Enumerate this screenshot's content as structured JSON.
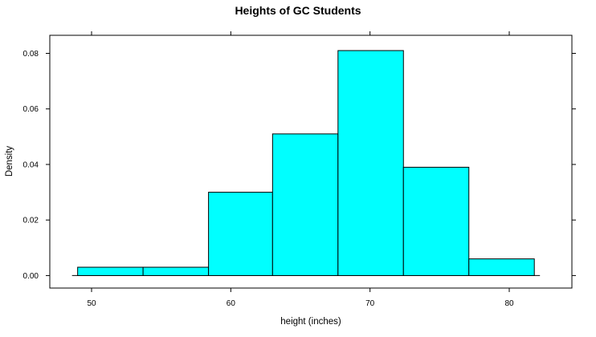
{
  "chart_data": {
    "type": "histogram",
    "title": "Heights of GC Students",
    "xlabel": "height (inches)",
    "ylabel": "Density",
    "xlim": [
      47,
      84.5
    ],
    "ylim": [
      -0.0045,
      0.0865
    ],
    "bar_color": "#00ffff",
    "edge_color": "#000000",
    "grid": false,
    "x_ticks": [
      50,
      60,
      70,
      80
    ],
    "x_tick_labels": [
      "50",
      "60",
      "70",
      "80"
    ],
    "y_ticks": [
      0.0,
      0.02,
      0.04,
      0.06,
      0.08
    ],
    "y_tick_labels": [
      "0.00",
      "0.02",
      "0.04",
      "0.06",
      "0.08"
    ],
    "bins": [
      {
        "x0": 49.0,
        "x1": 53.7,
        "density": 0.003
      },
      {
        "x0": 53.7,
        "x1": 58.4,
        "density": 0.003
      },
      {
        "x0": 58.4,
        "x1": 63.0,
        "density": 0.03
      },
      {
        "x0": 63.0,
        "x1": 67.7,
        "density": 0.051
      },
      {
        "x0": 67.7,
        "x1": 72.4,
        "density": 0.081
      },
      {
        "x0": 72.4,
        "x1": 77.1,
        "density": 0.039
      },
      {
        "x0": 77.1,
        "x1": 81.8,
        "density": 0.006
      }
    ]
  }
}
